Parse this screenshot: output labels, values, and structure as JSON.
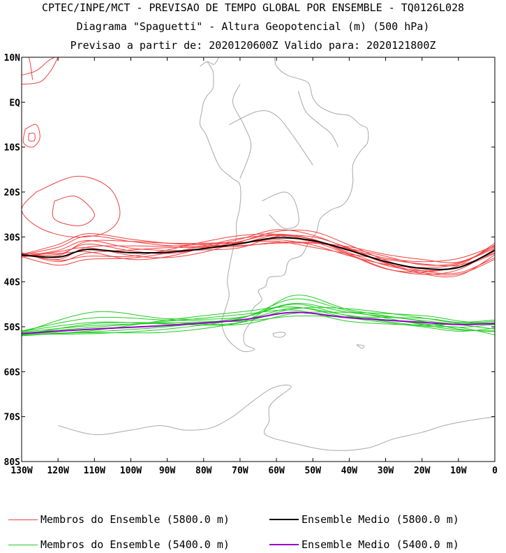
{
  "titles": {
    "line1": "CPTEC/INPE/MCT - PREVISAO DE TEMPO GLOBAL POR ENSEMBLE - TQ0126L028",
    "line2": "Diagrama \"Spaguetti\" - Altura Geopotencial (m) (500 hPa)",
    "line3": "Previsao a partir de: 2020120600Z  Valido para: 2020121800Z"
  },
  "axes": {
    "lat_labels": [
      "10N",
      "EQ",
      "10S",
      "20S",
      "30S",
      "40S",
      "50S",
      "60S",
      "70S",
      "80S"
    ],
    "lon_labels": [
      "130W",
      "120W",
      "110W",
      "100W",
      "90W",
      "80W",
      "70W",
      "60W",
      "50W",
      "40W",
      "30W",
      "20W",
      "10W",
      "0"
    ]
  },
  "colors": {
    "member_5800": "#f04040",
    "mean_5800": "#000000",
    "member_5400": "#22cc22",
    "mean_5400": "#9900cc",
    "coast": "#a8a8a8"
  },
  "legend": {
    "member_5800": "Membros do Ensemble (5800.0 m)",
    "mean_5800": "Ensemble Medio (5800.0 m)",
    "member_5400": "Membros do Ensemble (5400.0 m)",
    "mean_5400": "Ensemble Medio (5400.0 m)"
  },
  "contours": {
    "mean_5800": [
      [
        -130,
        -34
      ],
      [
        -120,
        -34.5
      ],
      [
        -112,
        -32.8
      ],
      [
        -100,
        -33.5
      ],
      [
        -90,
        -33.4
      ],
      [
        -80,
        -32.6
      ],
      [
        -70,
        -31.5
      ],
      [
        -60,
        -30.2
      ],
      [
        -50,
        -30.8
      ],
      [
        -40,
        -33
      ],
      [
        -30,
        -35.5
      ],
      [
        -20,
        -37
      ],
      [
        -10,
        -36.8
      ],
      [
        0,
        -33
      ]
    ],
    "mean_5400": [
      [
        -130,
        -51.5
      ],
      [
        -110,
        -50.5
      ],
      [
        -90,
        -49.7
      ],
      [
        -70,
        -48.5
      ],
      [
        -55,
        -46.8
      ],
      [
        -40,
        -48
      ],
      [
        -20,
        -49
      ],
      [
        -10,
        -49.5
      ],
      [
        0,
        -49.3
      ]
    ]
  }
}
